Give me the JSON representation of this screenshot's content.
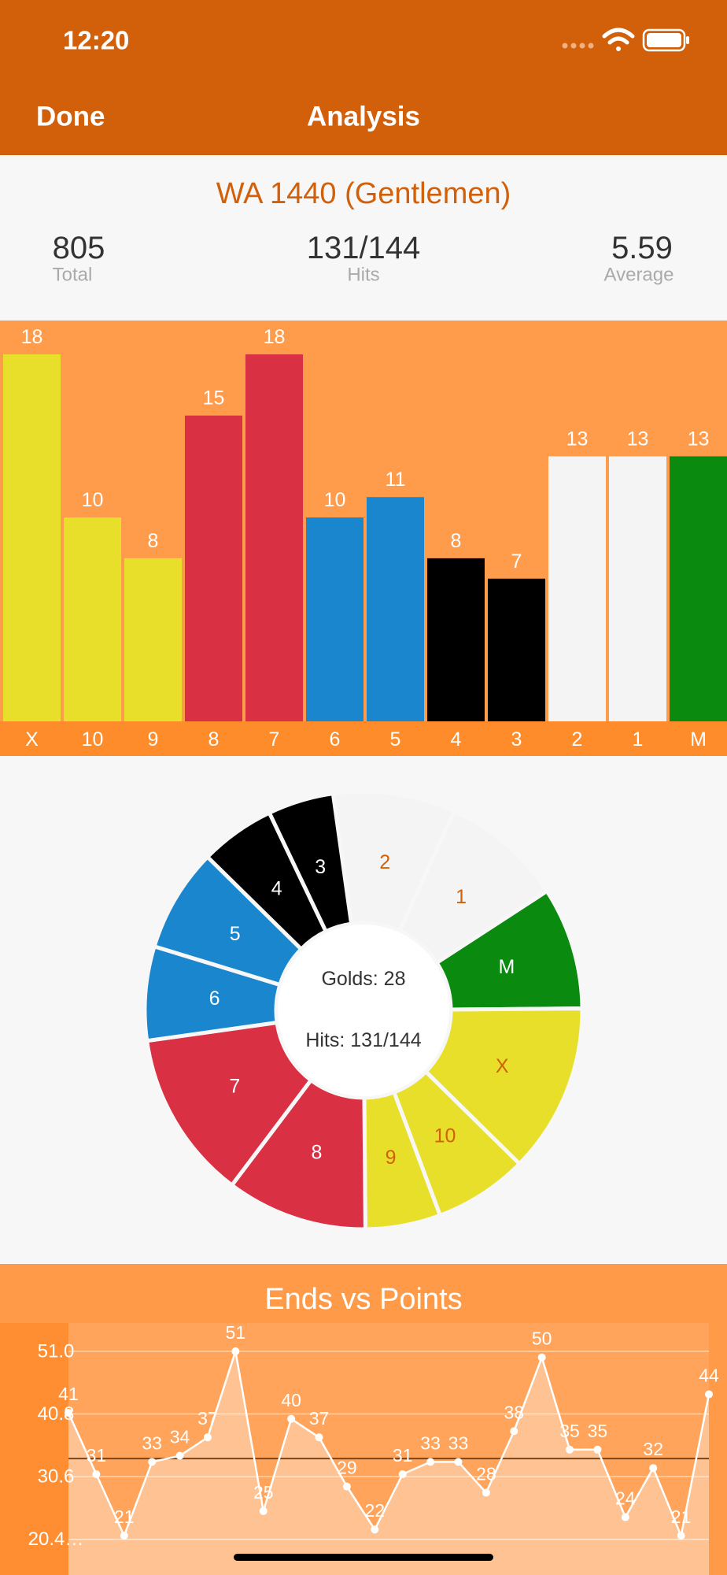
{
  "status": {
    "time": "12:20"
  },
  "nav": {
    "left": "Done",
    "title": "Analysis"
  },
  "header": {
    "title": "WA 1440 (Gentlemen)",
    "stats": [
      {
        "value": 805,
        "label": "Total"
      },
      {
        "value": "131/144",
        "label": "Hits"
      },
      {
        "value": 5.59,
        "label": "Average"
      }
    ]
  },
  "chart_data": [
    {
      "type": "bar",
      "categories": [
        "X",
        "10",
        "9",
        "8",
        "7",
        "6",
        "5",
        "4",
        "3",
        "2",
        "1",
        "M"
      ],
      "values": [
        18,
        10,
        8,
        15,
        18,
        10,
        11,
        8,
        7,
        13,
        13,
        13
      ],
      "colors": [
        "#e8df2a",
        "#e8df2a",
        "#e8df2a",
        "#d93043",
        "#d93043",
        "#1a86ce",
        "#1a86ce",
        "#000000",
        "#000000",
        "#f4f4f4",
        "#f4f4f4",
        "#0a8a0e"
      ]
    },
    {
      "type": "pie",
      "categories": [
        "2",
        "1",
        "M",
        "X",
        "10",
        "9",
        "8",
        "7",
        "6",
        "5",
        "4",
        "3"
      ],
      "values": [
        13,
        13,
        13,
        18,
        10,
        8,
        15,
        18,
        10,
        11,
        8,
        7
      ],
      "colors": [
        "#f4f4f4",
        "#f4f4f4",
        "#0a8a0e",
        "#e8df2a",
        "#e8df2a",
        "#e8df2a",
        "#d93043",
        "#d93043",
        "#1a86ce",
        "#1a86ce",
        "#000000",
        "#000000"
      ],
      "label_colors": [
        "#d2600a",
        "#d2600a",
        "#ffffff",
        "#d2600a",
        "#d2600a",
        "#d2600a",
        "#ffffff",
        "#ffffff",
        "#ffffff",
        "#ffffff",
        "#ffffff",
        "#ffffff"
      ],
      "center_text": [
        "Golds: 28",
        "Hits: 131/144"
      ]
    },
    {
      "type": "line",
      "title": "Ends vs Points",
      "values": [
        41,
        31,
        21,
        33,
        34,
        37,
        51,
        25,
        40,
        37,
        29,
        22,
        31,
        33,
        33,
        28,
        38,
        50,
        35,
        35,
        24,
        32,
        21,
        44
      ],
      "color": "#ffffff",
      "ylim": [
        14.6,
        55.6
      ],
      "yticks": [
        {
          "value": 51,
          "label": "51.0"
        },
        {
          "value": 40.8,
          "label": "40.8"
        },
        {
          "value": 30.6,
          "label": "30.6"
        },
        {
          "value": 20.4,
          "label": "20.4…"
        }
      ],
      "average": 33.54,
      "grid": true
    }
  ]
}
